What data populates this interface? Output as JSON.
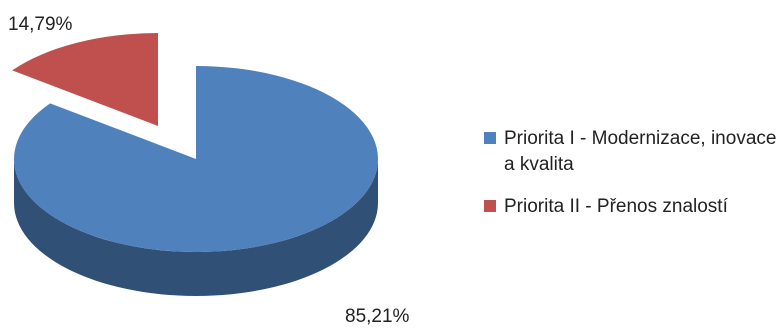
{
  "chart_data": {
    "type": "pie",
    "style": "3d-exploded",
    "slices": [
      {
        "label": "Priorita I - Modernizace, inovace a kvalita",
        "value": 85.21,
        "display": "85,21%",
        "color": "#4F81BD"
      },
      {
        "label": "Priorita II - Přenos znalostí",
        "value": 14.79,
        "display": "14,79%",
        "color": "#C0504D"
      }
    ],
    "legend_position": "right"
  }
}
